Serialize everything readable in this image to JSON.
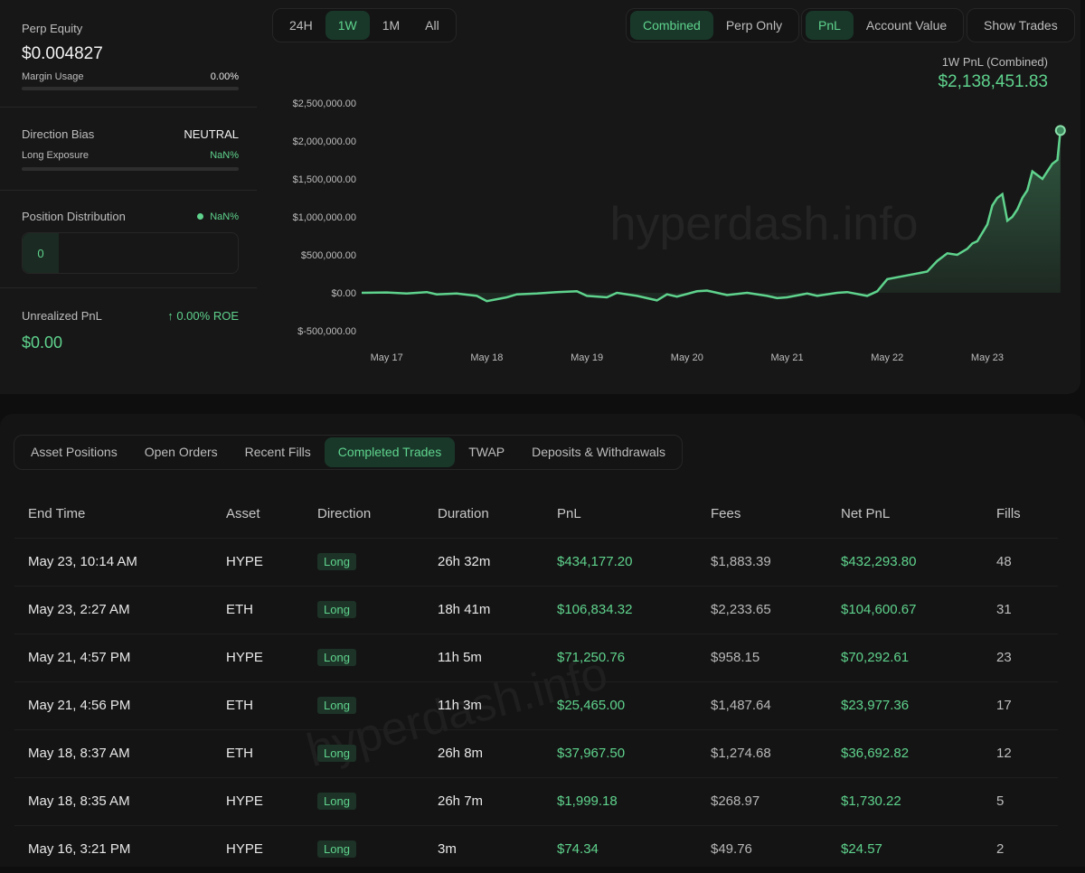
{
  "colors": {
    "accent": "#5fd38d",
    "accent_bg": "#19382a",
    "background": "#0e0e0e",
    "card": "#171717"
  },
  "left": {
    "perp_equity_label": "Perp Equity",
    "perp_equity_value": "$0.004827",
    "margin_usage_label": "Margin Usage",
    "margin_usage_value": "0.00%",
    "direction_bias_label": "Direction Bias",
    "direction_bias_value": "NEUTRAL",
    "long_exposure_label": "Long Exposure",
    "long_exposure_value": "NaN%",
    "position_distribution_label": "Position Distribution",
    "position_distribution_value": "NaN%",
    "position_count": "0",
    "unrealized_pnl_label": "Unrealized PnL",
    "roe_value": "0.00% ROE",
    "unrealized_pnl_value": "$0.00"
  },
  "controls": {
    "range": [
      "24H",
      "1W",
      "1M",
      "All"
    ],
    "range_selected": "1W",
    "mode": [
      "Combined",
      "Perp Only"
    ],
    "mode_selected": "Combined",
    "metric": [
      "PnL",
      "Account Value"
    ],
    "metric_selected": "PnL",
    "show_trades": "Show Trades"
  },
  "summary": {
    "label": "1W PnL (Combined)",
    "value": "$2,138,451.83"
  },
  "watermark": "hyperdash.info",
  "chart_data": {
    "type": "area",
    "title": "",
    "xlabel": "",
    "ylabel": "",
    "x_ticks": [
      "May 17",
      "May 18",
      "May 19",
      "May 20",
      "May 21",
      "May 22",
      "May 23"
    ],
    "y_ticks": [
      "$2,500,000.00",
      "$2,000,000.00",
      "$1,500,000.00",
      "$1,000,000.00",
      "$500,000.00",
      "$0.00",
      "$-500,000.00"
    ],
    "y_tick_values": [
      2500000,
      2000000,
      1500000,
      1000000,
      500000,
      0,
      -500000
    ],
    "ylim": [
      -500000,
      2500000
    ],
    "x_range": [
      16.75,
      23.75
    ],
    "series": [
      {
        "x": [
          16.75,
          17.0,
          17.2,
          17.4,
          17.5,
          17.7,
          17.9,
          18.0,
          18.2,
          18.3,
          18.5,
          18.7,
          18.9,
          19.0,
          19.2,
          19.3,
          19.5,
          19.7,
          19.8,
          19.9,
          20.1,
          20.2,
          20.4,
          20.6,
          20.8,
          20.9,
          21.0,
          21.2,
          21.3,
          21.5,
          21.6,
          21.8,
          21.9,
          22.0,
          22.2,
          22.4,
          22.5,
          22.6,
          22.7,
          22.8,
          22.85,
          22.9,
          23.0,
          23.05,
          23.1,
          23.15,
          23.2,
          23.25,
          23.3,
          23.35,
          23.4,
          23.45,
          23.5,
          23.55,
          23.6,
          23.65,
          23.7,
          23.73
        ],
        "y": [
          0,
          5000,
          -10000,
          10000,
          -20000,
          -10000,
          -40000,
          -110000,
          -60000,
          -20000,
          -10000,
          10000,
          20000,
          -40000,
          -60000,
          0,
          -40000,
          -100000,
          -20000,
          -50000,
          20000,
          30000,
          -30000,
          0,
          -40000,
          -70000,
          -60000,
          -10000,
          -40000,
          0,
          10000,
          -40000,
          20000,
          180000,
          230000,
          280000,
          420000,
          520000,
          500000,
          580000,
          650000,
          680000,
          900000,
          1150000,
          1250000,
          1300000,
          950000,
          1000000,
          1100000,
          1250000,
          1350000,
          1600000,
          1550000,
          1500000,
          1600000,
          1700000,
          1750000,
          2138451.83
        ]
      }
    ],
    "grid": false
  },
  "tabs": [
    "Asset Positions",
    "Open Orders",
    "Recent Fills",
    "Completed Trades",
    "TWAP",
    "Deposits & Withdrawals"
  ],
  "tab_selected": "Completed Trades",
  "table": {
    "headers": [
      "End Time",
      "Asset",
      "Direction",
      "Duration",
      "PnL",
      "Fees",
      "Net PnL",
      "Fills"
    ],
    "rows": [
      [
        "May 23, 10:14 AM",
        "HYPE",
        "Long",
        "26h 32m",
        "$434,177.20",
        "$1,883.39",
        "$432,293.80",
        "48"
      ],
      [
        "May 23, 2:27 AM",
        "ETH",
        "Long",
        "18h 41m",
        "$106,834.32",
        "$2,233.65",
        "$104,600.67",
        "31"
      ],
      [
        "May 21, 4:57 PM",
        "HYPE",
        "Long",
        "11h 5m",
        "$71,250.76",
        "$958.15",
        "$70,292.61",
        "23"
      ],
      [
        "May 21, 4:56 PM",
        "ETH",
        "Long",
        "11h 3m",
        "$25,465.00",
        "$1,487.64",
        "$23,977.36",
        "17"
      ],
      [
        "May 18, 8:37 AM",
        "ETH",
        "Long",
        "26h 8m",
        "$37,967.50",
        "$1,274.68",
        "$36,692.82",
        "12"
      ],
      [
        "May 18, 8:35 AM",
        "HYPE",
        "Long",
        "26h 7m",
        "$1,999.18",
        "$268.97",
        "$1,730.22",
        "5"
      ],
      [
        "May 16, 3:21 PM",
        "HYPE",
        "Long",
        "3m",
        "$74.34",
        "$49.76",
        "$24.57",
        "2"
      ]
    ]
  }
}
